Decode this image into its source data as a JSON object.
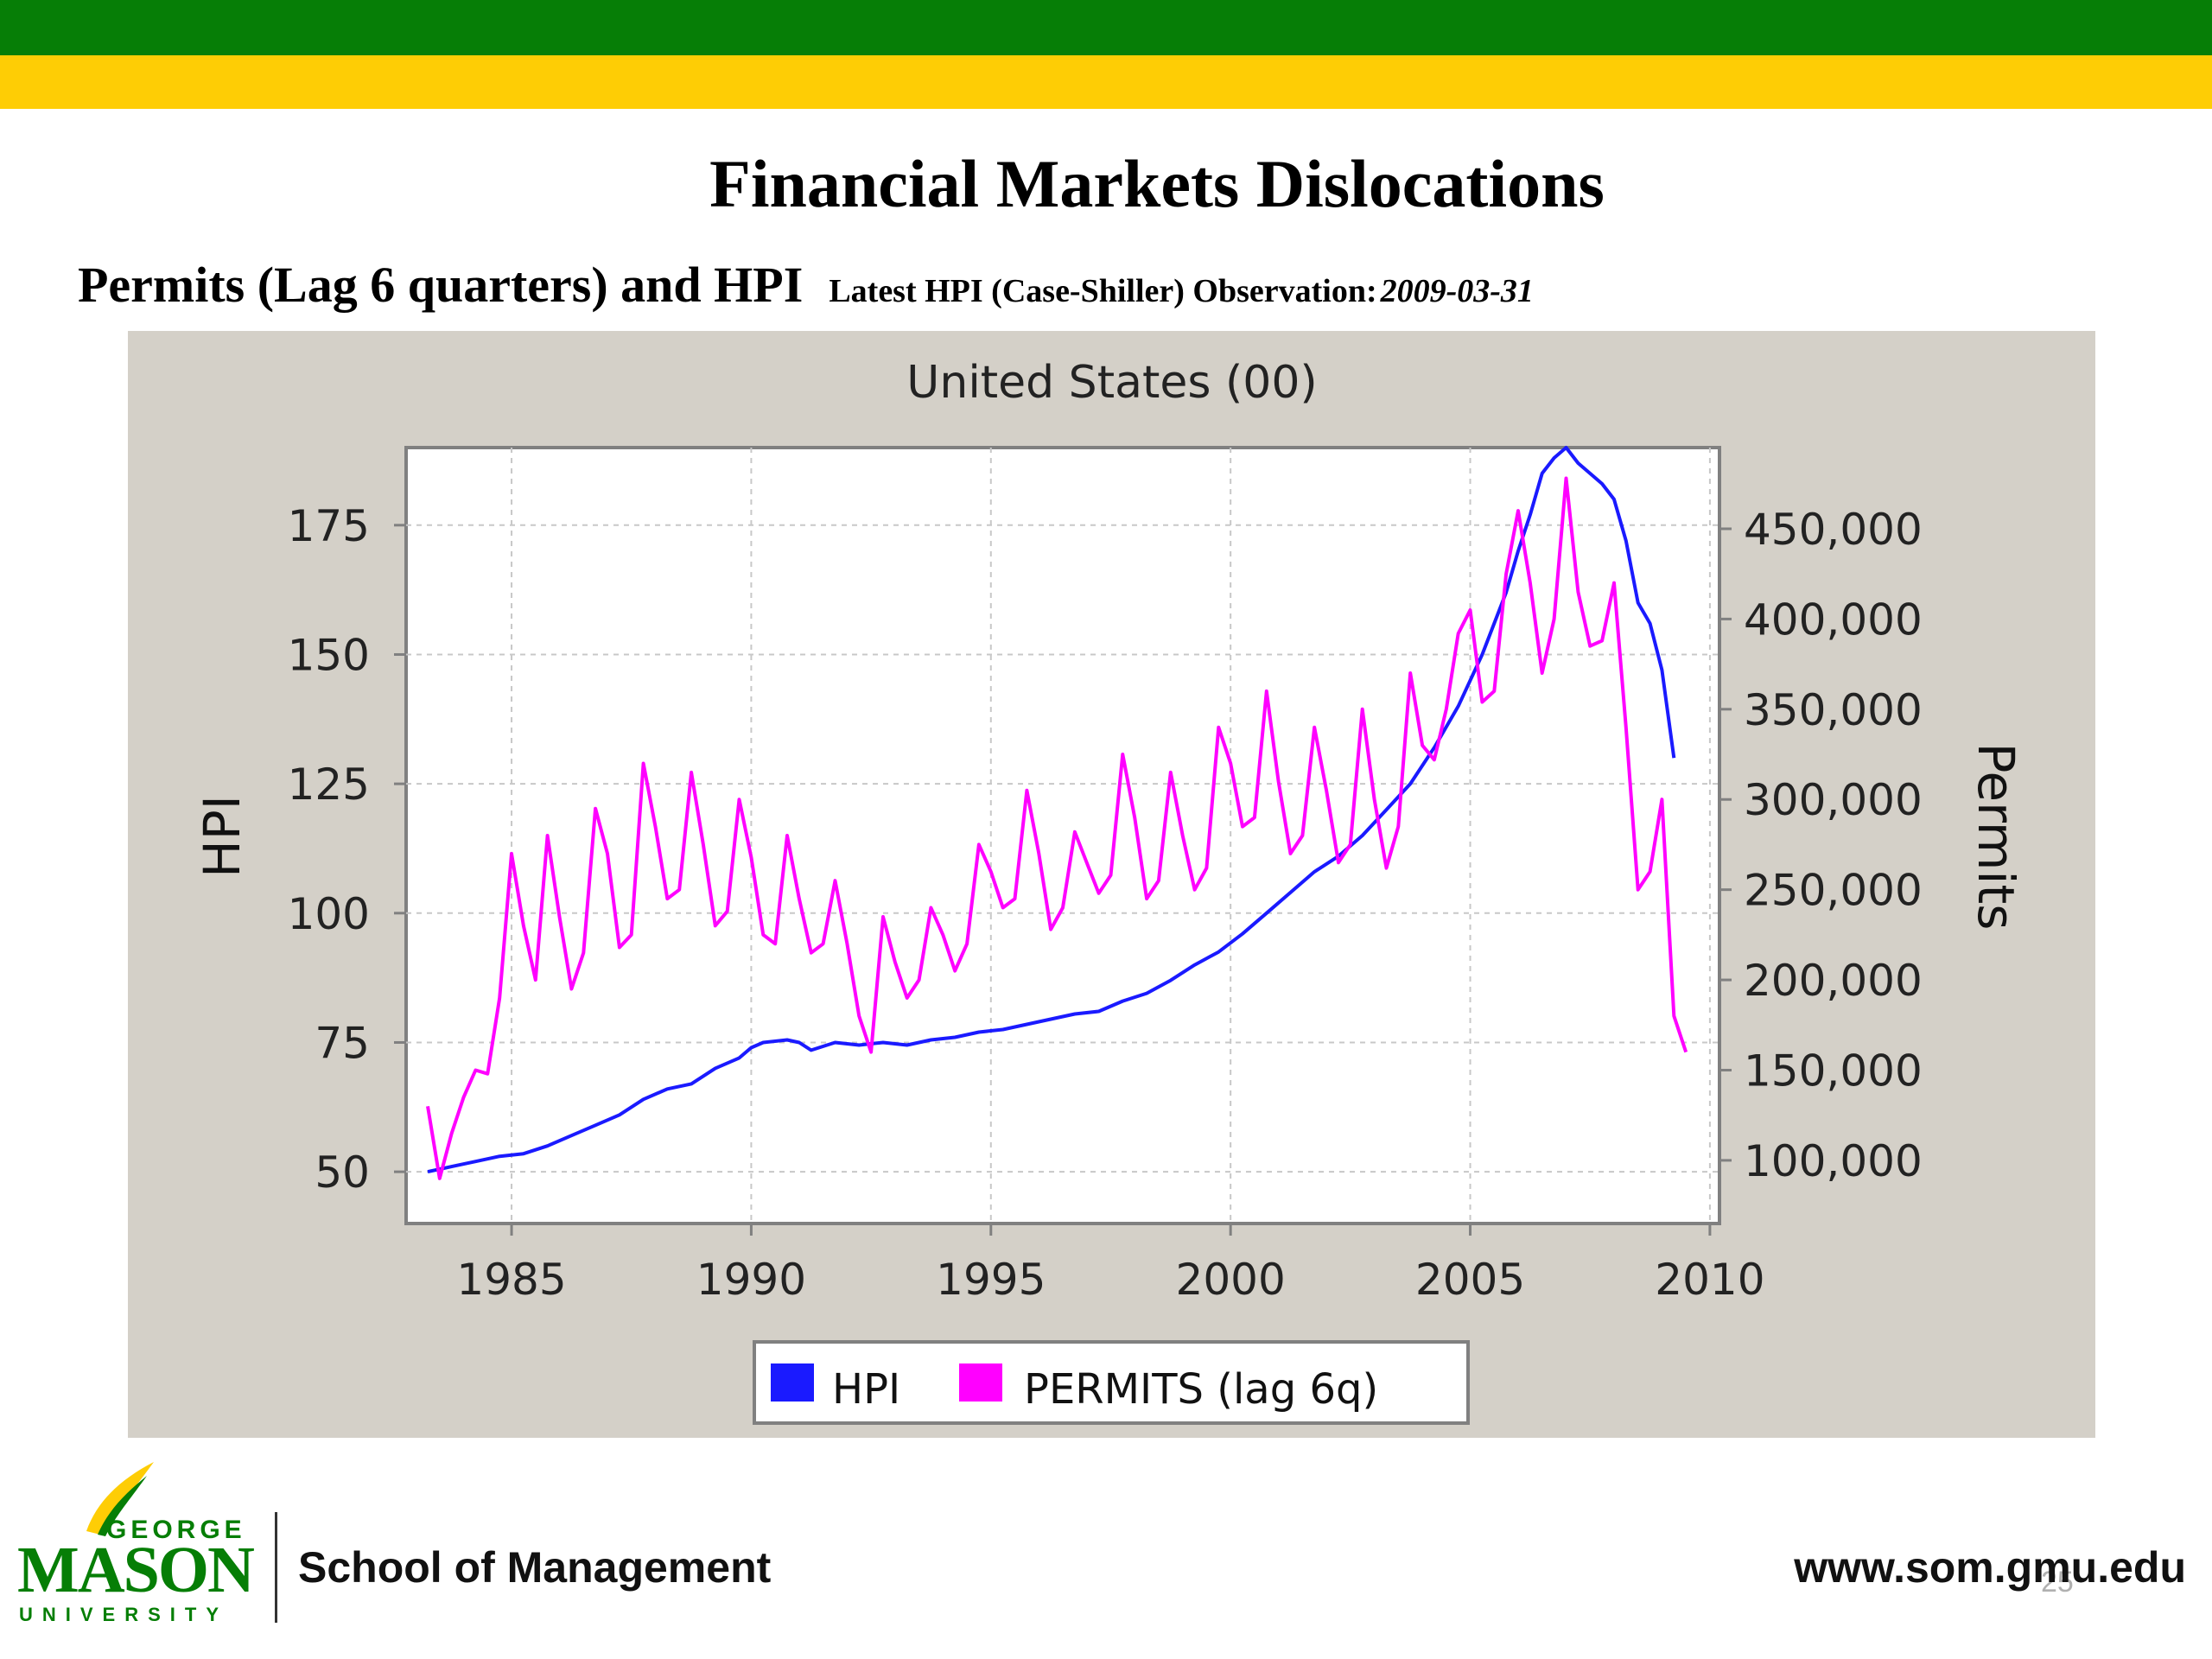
{
  "slide": {
    "title": "Financial Markets Dislocations",
    "subtitle": "Permits (Lag 6 quarters) and HPI",
    "note_label": "Latest HPI (Case-Shiller) Observation:",
    "note_date": "2009-03-31",
    "footer_school": "School of Management",
    "footer_url": "www.som.gmu.edu",
    "page_number": "25",
    "logo": {
      "top": "GEORGE",
      "main": "MASON",
      "bottom": "UNIVERSITY"
    }
  },
  "colors": {
    "green": "#067e06",
    "gold": "#fecd05",
    "chart_bg": "#d4d0c8",
    "hpi": "#1a1aff",
    "permits": "#ff00ff"
  },
  "chart_data": {
    "type": "line",
    "title": "United States (00)",
    "xlabel": "",
    "ylabel": "HPI",
    "y2label": "Permits",
    "xlim": [
      1982.8,
      2010.2
    ],
    "ylim": [
      40,
      190
    ],
    "y2lim": [
      65000,
      495000
    ],
    "x_ticks": [
      1985,
      1990,
      1995,
      2000,
      2005,
      2010
    ],
    "y_ticks": [
      50,
      75,
      100,
      125,
      150,
      175
    ],
    "y2_ticks": [
      100000,
      150000,
      200000,
      250000,
      300000,
      350000,
      400000,
      450000
    ],
    "y2_tick_labels": [
      "100,000",
      "150,000",
      "200,000",
      "250,000",
      "300,000",
      "350,000",
      "400,000",
      "450,000"
    ],
    "grid": true,
    "legend_position": "bottom-center",
    "series": [
      {
        "name": "HPI",
        "axis": "left",
        "color": "#1a1aff",
        "x": [
          1983.25,
          1983.75,
          1984.25,
          1984.75,
          1985.25,
          1985.75,
          1986.25,
          1986.75,
          1987.25,
          1987.75,
          1988.25,
          1988.75,
          1989.25,
          1989.75,
          1990.0,
          1990.25,
          1990.75,
          1991.0,
          1991.25,
          1991.75,
          1992.25,
          1992.75,
          1993.25,
          1993.75,
          1994.25,
          1994.75,
          1995.25,
          1995.75,
          1996.25,
          1996.75,
          1997.25,
          1997.75,
          1998.25,
          1998.75,
          1999.25,
          1999.75,
          2000.25,
          2000.75,
          2001.25,
          2001.75,
          2002.25,
          2002.75,
          2003.25,
          2003.75,
          2004.25,
          2004.75,
          2005.25,
          2005.75,
          2006.0,
          2006.25,
          2006.5,
          2006.75,
          2007.0,
          2007.25,
          2007.5,
          2007.75,
          2008.0,
          2008.25,
          2008.5,
          2008.75,
          2009.0,
          2009.25
        ],
        "y": [
          50,
          51,
          52,
          53,
          53.5,
          55,
          57,
          59,
          61,
          64,
          66,
          67,
          70,
          72,
          74,
          75,
          75.5,
          75,
          73.5,
          75,
          74.5,
          75,
          74.5,
          75.5,
          76,
          77,
          77.5,
          78.5,
          79.5,
          80.5,
          81,
          83,
          84.5,
          87,
          90,
          92.5,
          96,
          100,
          104,
          108,
          111,
          115,
          120,
          125,
          132,
          140,
          150,
          162,
          170,
          177,
          185,
          188,
          190,
          187,
          185,
          183,
          180,
          172,
          160,
          156,
          147,
          130
        ]
      },
      {
        "name": "PERMITS (lag 6q)",
        "axis": "right",
        "color": "#ff00ff",
        "x": [
          1983.25,
          1983.5,
          1983.75,
          1984.0,
          1984.25,
          1984.5,
          1984.75,
          1985.0,
          1985.25,
          1985.5,
          1985.75,
          1986.0,
          1986.25,
          1986.5,
          1986.75,
          1987.0,
          1987.25,
          1987.5,
          1987.75,
          1988.0,
          1988.25,
          1988.5,
          1988.75,
          1989.0,
          1989.25,
          1989.5,
          1989.75,
          1990.0,
          1990.25,
          1990.5,
          1990.75,
          1991.0,
          1991.25,
          1991.5,
          1991.75,
          1992.0,
          1992.25,
          1992.5,
          1992.75,
          1993.0,
          1993.25,
          1993.5,
          1993.75,
          1994.0,
          1994.25,
          1994.5,
          1994.75,
          1995.0,
          1995.25,
          1995.5,
          1995.75,
          1996.0,
          1996.25,
          1996.5,
          1996.75,
          1997.0,
          1997.25,
          1997.5,
          1997.75,
          1998.0,
          1998.25,
          1998.5,
          1998.75,
          1999.0,
          1999.25,
          1999.5,
          1999.75,
          2000.0,
          2000.25,
          2000.5,
          2000.75,
          2001.0,
          2001.25,
          2001.5,
          2001.75,
          2002.0,
          2002.25,
          2002.5,
          2002.75,
          2003.0,
          2003.25,
          2003.5,
          2003.75,
          2004.0,
          2004.25,
          2004.5,
          2004.75,
          2005.0,
          2005.25,
          2005.5,
          2005.75,
          2006.0,
          2006.25,
          2006.5,
          2006.75,
          2007.0,
          2007.25,
          2007.5,
          2007.75,
          2008.0,
          2008.25,
          2008.5,
          2008.75,
          2009.0,
          2009.25,
          2009.5
        ],
        "y": [
          130000,
          90000,
          115000,
          135000,
          150000,
          148000,
          190000,
          270000,
          230000,
          200000,
          280000,
          235000,
          195000,
          215000,
          295000,
          270000,
          218000,
          225000,
          320000,
          285000,
          245000,
          250000,
          315000,
          275000,
          230000,
          238000,
          300000,
          268000,
          225000,
          220000,
          280000,
          245000,
          215000,
          220000,
          255000,
          220000,
          180000,
          160000,
          235000,
          210000,
          190000,
          200000,
          240000,
          225000,
          205000,
          220000,
          275000,
          260000,
          240000,
          245000,
          305000,
          270000,
          228000,
          240000,
          282000,
          265000,
          248000,
          258000,
          325000,
          290000,
          245000,
          255000,
          315000,
          280000,
          250000,
          262000,
          340000,
          320000,
          285000,
          290000,
          360000,
          310000,
          270000,
          280000,
          340000,
          305000,
          265000,
          275000,
          350000,
          300000,
          262000,
          285000,
          370000,
          330000,
          322000,
          350000,
          392000,
          405000,
          354000,
          360000,
          425000,
          460000,
          420000,
          370000,
          400000,
          478000,
          415000,
          385000,
          388000,
          420000,
          340000,
          250000,
          260000,
          300000,
          180000,
          160000
        ]
      }
    ]
  }
}
